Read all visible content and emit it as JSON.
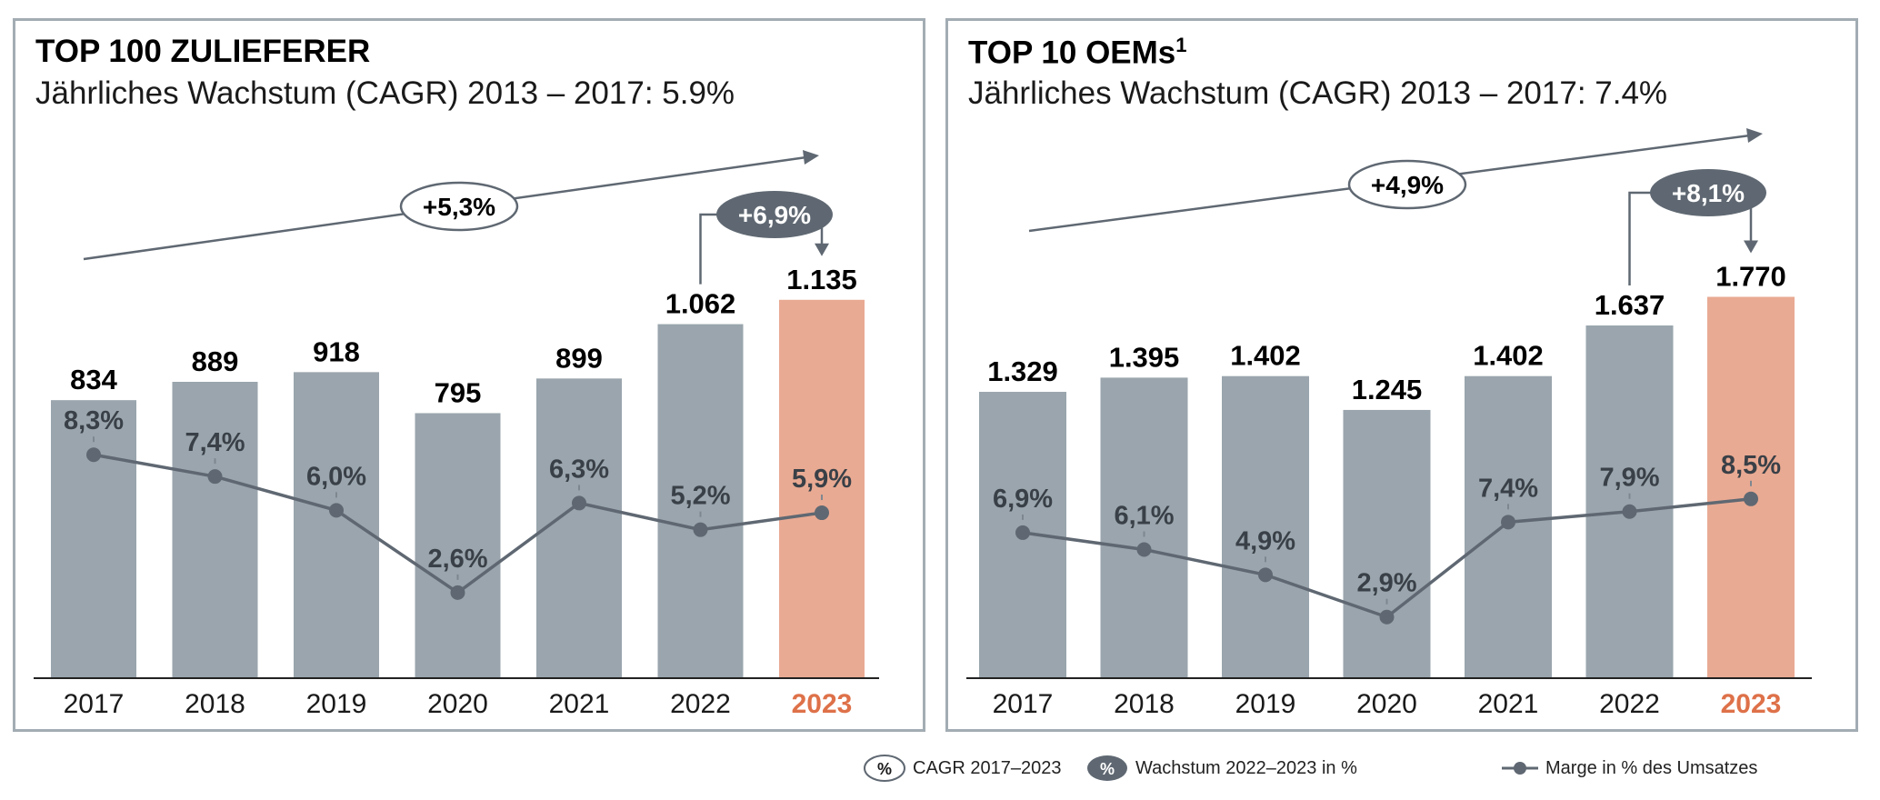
{
  "colors": {
    "bar": "#9aa5ad",
    "highlight": "#e9aa93",
    "line": "#5f6872",
    "dark": "#5f6872",
    "year_highlight": "#de7149",
    "text": "#1a1a1a"
  },
  "chart_data": [
    {
      "type": "bar",
      "title": "TOP 100 ZULIEFERER",
      "footnote_mark": "",
      "subtitle": "Jährliches Wachstum (CAGR) 2013 – 2017: 5.9%",
      "categories": [
        "2017",
        "2018",
        "2019",
        "2020",
        "2021",
        "2022",
        "2023"
      ],
      "values": [
        834,
        889,
        918,
        795,
        899,
        1062,
        1135
      ],
      "value_labels": [
        "834",
        "889",
        "918",
        "795",
        "899",
        "1.062",
        "1.135"
      ],
      "highlight_category": "2023",
      "line_series": {
        "values": [
          8.3,
          7.4,
          6.0,
          2.6,
          6.3,
          5.2,
          5.9
        ],
        "labels": [
          "8,3%",
          "7,4%",
          "6,0%",
          "2,6%",
          "6,3%",
          "5,2%",
          "5,9%"
        ]
      },
      "cagr_label": "+5,3%",
      "growth_label": "+6,9%"
    },
    {
      "type": "bar",
      "title": "TOP 10 OEMs",
      "footnote_mark": "1",
      "subtitle": "Jährliches Wachstum (CAGR) 2013 – 2017: 7.4%",
      "categories": [
        "2017",
        "2018",
        "2019",
        "2020",
        "2021",
        "2022",
        "2023"
      ],
      "values": [
        1329,
        1395,
        1402,
        1245,
        1402,
        1637,
        1770
      ],
      "value_labels": [
        "1.329",
        "1.395",
        "1.402",
        "1.245",
        "1.402",
        "1.637",
        "1.770"
      ],
      "highlight_category": "2023",
      "line_series": {
        "values": [
          6.9,
          6.1,
          4.9,
          2.9,
          7.4,
          7.9,
          8.5
        ],
        "labels": [
          "6,9%",
          "6,1%",
          "4,9%",
          "2,9%",
          "7,4%",
          "7,9%",
          "8,5%"
        ]
      },
      "cagr_label": "+4,9%",
      "growth_label": "+8,1%"
    }
  ],
  "legend": {
    "cagr_symbol": "%",
    "cagr_text": "CAGR 2017–2023",
    "growth_symbol": "%",
    "growth_text": "Wachstum 2022–2023 in %",
    "margin_text": "Marge in % des Umsatzes"
  }
}
